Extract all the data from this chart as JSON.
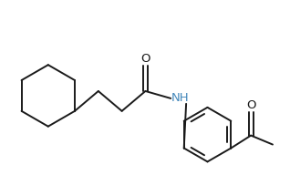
{
  "background_color": "#ffffff",
  "line_color": "#1a1a1a",
  "nh_color": "#4488bb",
  "line_width": 1.4,
  "figsize": [
    3.18,
    1.92
  ],
  "dpi": 100,
  "xlim": [
    0,
    318
  ],
  "ylim": [
    0,
    192
  ]
}
